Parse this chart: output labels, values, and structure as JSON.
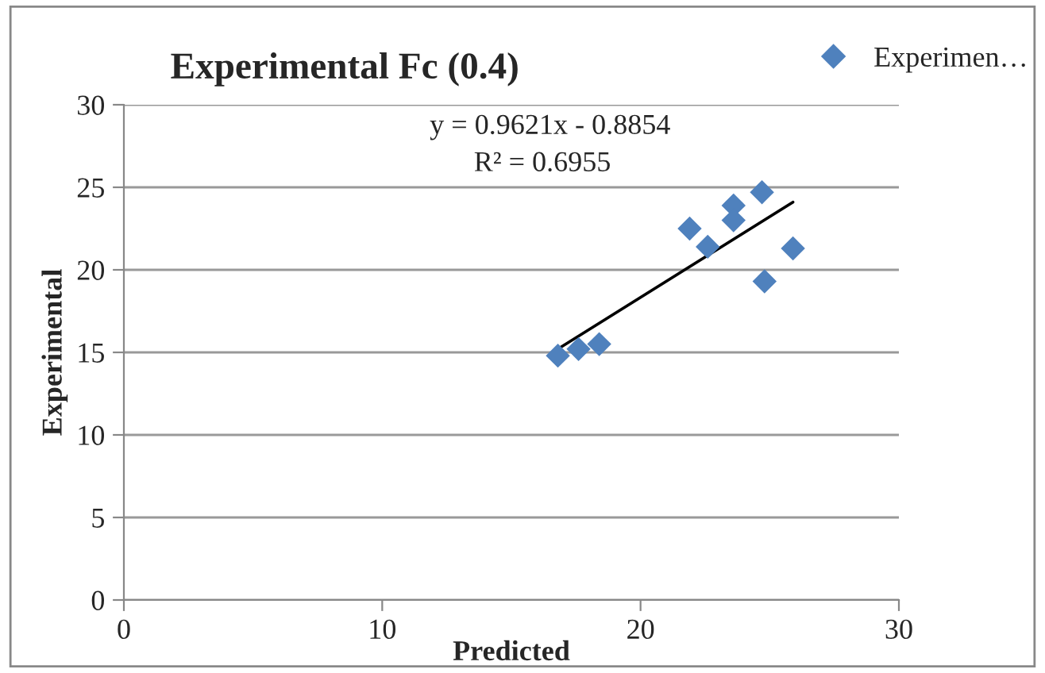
{
  "chart_data": {
    "type": "scatter",
    "title": "Experimental Fc (0.4)",
    "xlabel": "Predicted",
    "ylabel": "Experimental",
    "series": [
      {
        "name": "Experimen…",
        "color": "#4f81bd",
        "marker": "diamond",
        "x": [
          16.8,
          17.6,
          18.4,
          21.9,
          22.6,
          23.6,
          23.6,
          24.7,
          24.8,
          25.9
        ],
        "values": [
          14.8,
          15.2,
          15.5,
          22.5,
          21.4,
          23.9,
          23.0,
          24.7,
          19.3,
          21.3
        ]
      },
      {
        "type": "line",
        "color": "#000000",
        "marker": "none",
        "x": [
          16.8,
          25.9
        ],
        "values": [
          15.2,
          24.1
        ]
      }
    ],
    "annotations": [
      "y = 0.9621x - 0.8854",
      "R² = 0.6955"
    ],
    "xlim": [
      0,
      30
    ],
    "ylim": [
      0,
      30
    ],
    "xticks": [
      0,
      10,
      20,
      30
    ],
    "yticks": [
      0,
      5,
      10,
      15,
      20,
      25,
      30
    ],
    "grid": "y",
    "legend": "top right"
  }
}
